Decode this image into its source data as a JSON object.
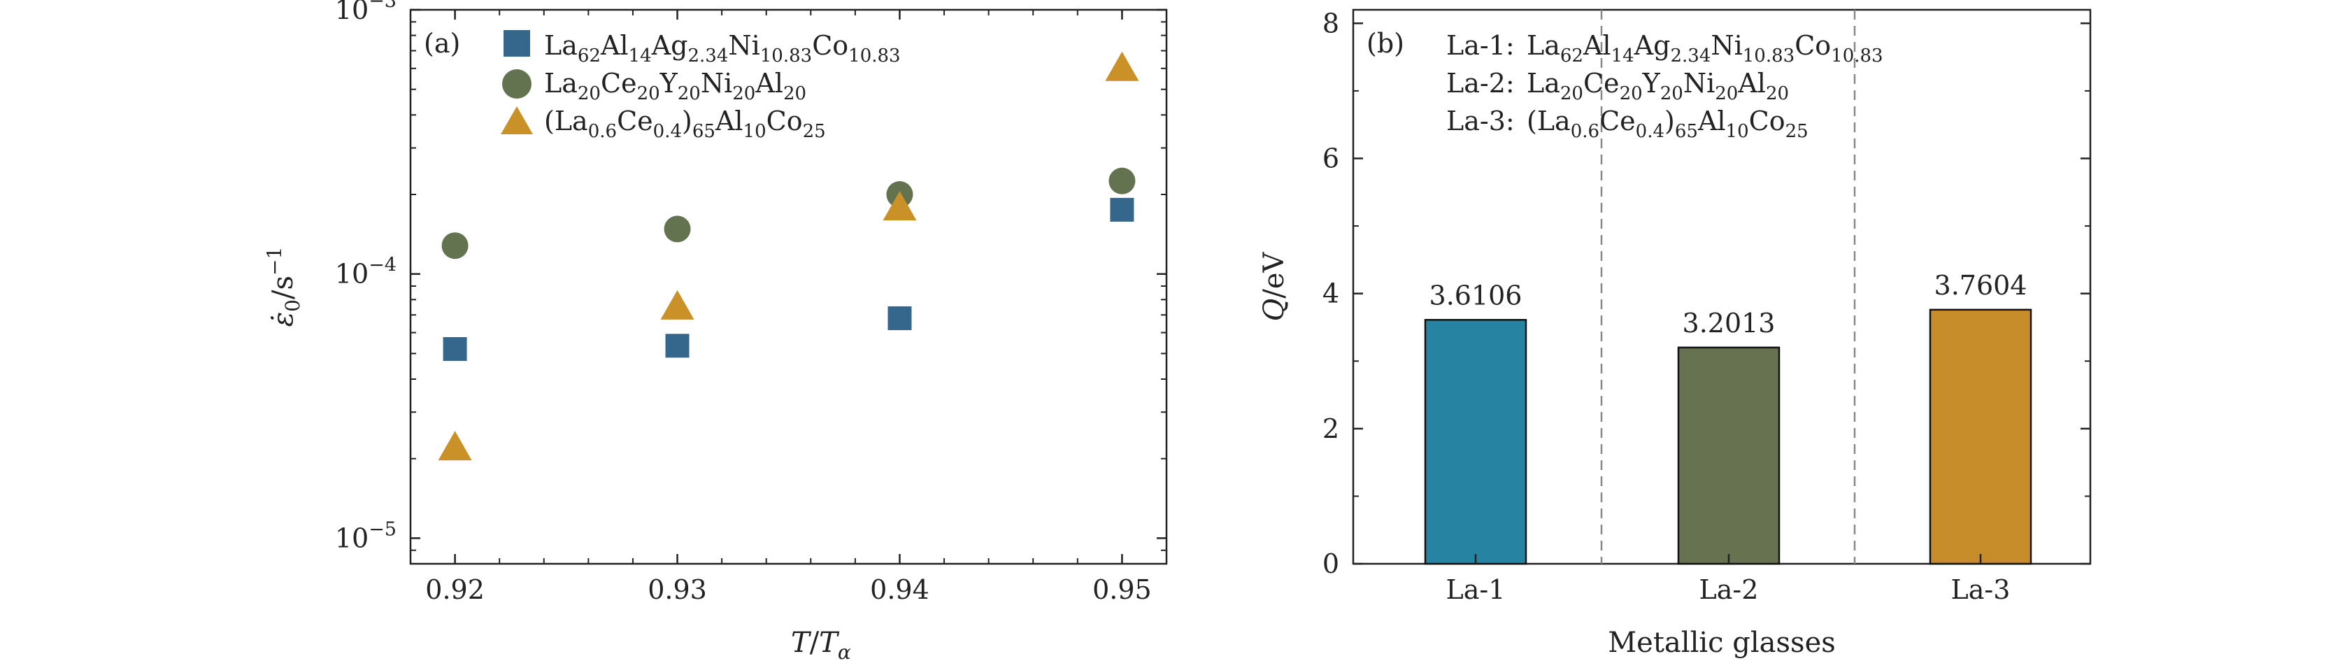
{
  "chart_data": [
    {
      "type": "scatter",
      "panel_label": "(a)",
      "xlabel": "T/Tα",
      "ylabel": "ε̇0/s−1",
      "yscale": "log",
      "xlim": [
        0.918,
        0.952
      ],
      "ylim": [
        8e-06,
        0.001
      ],
      "x_ticks": [
        0.92,
        0.93,
        0.94,
        0.95
      ],
      "x_tick_labels": [
        "0.92",
        "0.93",
        "0.94",
        "0.95"
      ],
      "y_ticks": [
        1e-05,
        0.0001,
        0.001
      ],
      "y_tick_labels": [
        "10−5",
        "10−4",
        "10−3"
      ],
      "legend_position": "top-left",
      "series": [
        {
          "name": "La62Al14Ag2.34Ni10.83Co10.83",
          "marker": "square",
          "color": "#35678c",
          "x": [
            0.92,
            0.93,
            0.94,
            0.95
          ],
          "y": [
            5.2e-05,
            5.35e-05,
            6.8e-05,
            0.000175
          ]
        },
        {
          "name": "La20Ce20Y20Ni20Al20",
          "marker": "circle",
          "color": "#637350",
          "x": [
            0.92,
            0.93,
            0.94,
            0.95
          ],
          "y": [
            0.000128,
            0.000148,
            0.0002,
            0.000225
          ]
        },
        {
          "name": "(La0.6Ce0.4)65Al10Co25",
          "marker": "triangle",
          "color": "#c99127",
          "x": [
            0.92,
            0.93,
            0.94,
            0.95
          ],
          "y": [
            2.2e-05,
            7.5e-05,
            0.000178,
            0.0006
          ]
        }
      ]
    },
    {
      "type": "bar",
      "panel_label": "(b)",
      "xlabel": "Metallic glasses",
      "ylabel": "Q/eV",
      "ylim": [
        0,
        8.2
      ],
      "y_ticks": [
        0,
        2,
        4,
        6,
        8
      ],
      "y_tick_labels": [
        "0",
        "2",
        "4",
        "6",
        "8"
      ],
      "categories": [
        "La-1",
        "La-2",
        "La-3"
      ],
      "values": [
        3.6106,
        3.2013,
        3.7604
      ],
      "value_labels": [
        "3.6106",
        "3.2013",
        "3.7604"
      ],
      "colors": [
        "#2783a2",
        "#667250",
        "#c68d2a"
      ],
      "legend_position": "top-left",
      "legend": [
        {
          "key": "La-1:",
          "formula": "La62Al14Ag2.34Ni10.83Co10.83"
        },
        {
          "key": "La-2:",
          "formula": "La20Ce20Y20Ni20Al20"
        },
        {
          "key": "La-3:",
          "formula": "(La0.6Ce0.4)65Al10Co25"
        }
      ]
    }
  ]
}
